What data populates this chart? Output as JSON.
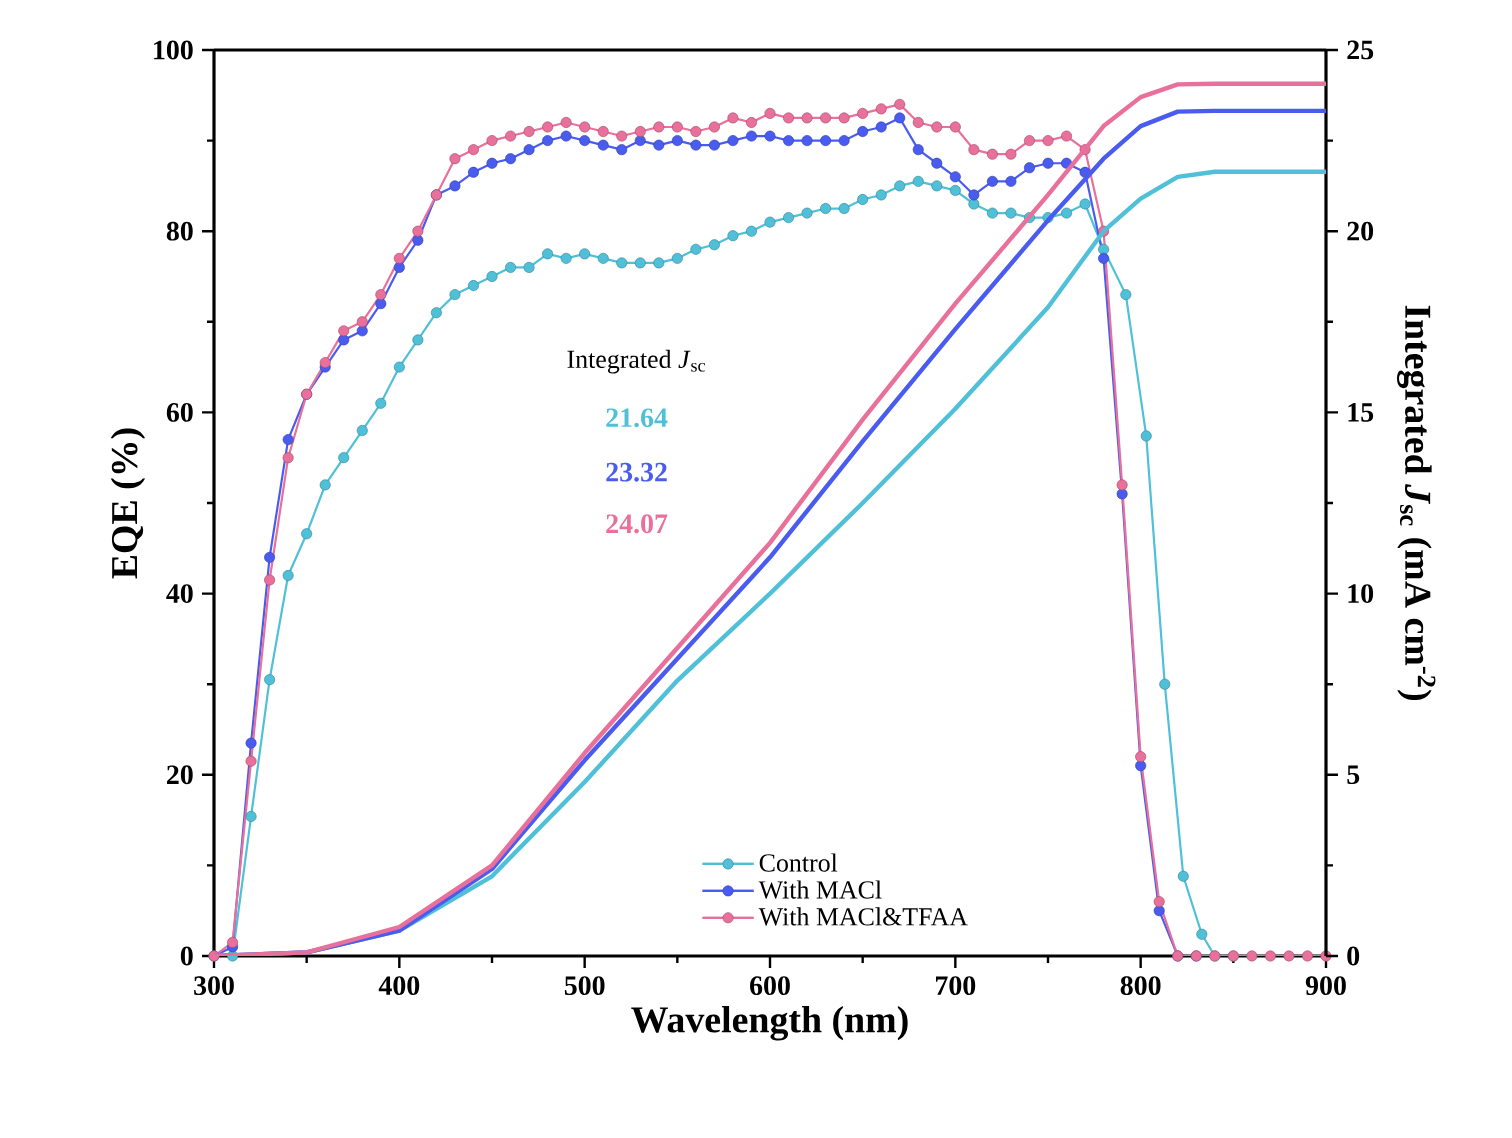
{
  "chart_data": {
    "type": "line",
    "xlabel": "Wavelength (nm)",
    "ylabel": "EQE (%)",
    "y2label": "Integrated *J*$_{sc}$ (mA cm$^{-2}$)",
    "xlim": [
      300,
      900
    ],
    "xticks": [
      300,
      400,
      500,
      600,
      700,
      800,
      900
    ],
    "ylim": [
      0,
      100
    ],
    "yticks": [
      0,
      20,
      40,
      60,
      80,
      100
    ],
    "y2lim": [
      0,
      25
    ],
    "y2ticks": [
      0,
      5,
      10,
      15,
      20,
      25
    ],
    "legend": "bottom",
    "grid": false,
    "annotations": [
      "Integrated *J*$_{sc}$",
      "21.64",
      "23.32",
      "24.07"
    ],
    "series": [
      {
        "name": "Control",
        "color": "#4fc0d8",
        "marker": "circle",
        "x": [
          310,
          320,
          330,
          340,
          350,
          360,
          370,
          380,
          390,
          400,
          410,
          420,
          430,
          440,
          450,
          460,
          470,
          480,
          490,
          500,
          510,
          520,
          530,
          540,
          550,
          560,
          570,
          580,
          590,
          600,
          610,
          620,
          630,
          640,
          650,
          660,
          670,
          680,
          690,
          700,
          710,
          720,
          730,
          740,
          750,
          760,
          770,
          780,
          792,
          803,
          813,
          823,
          833,
          840,
          850
        ],
        "values": [
          0,
          15.4,
          30.5,
          42,
          46.6,
          52,
          55,
          58,
          61,
          65,
          68,
          71,
          73,
          74,
          75,
          76,
          76,
          77.5,
          77,
          77.5,
          77,
          76.5,
          76.5,
          76.5,
          77,
          78,
          78.5,
          79.5,
          80,
          81,
          81.5,
          82,
          82.5,
          82.5,
          83.5,
          84,
          85,
          85.5,
          85,
          84.5,
          83,
          82,
          82,
          81.5,
          81.5,
          82,
          83,
          78,
          73,
          57.4,
          30,
          8.8,
          2.4,
          0,
          0
        ]
      },
      {
        "name": "With MACl",
        "color": "#4a5cf0",
        "marker": "circle",
        "x": [
          300,
          310,
          320,
          330,
          340,
          350,
          360,
          370,
          380,
          390,
          400,
          410,
          420,
          430,
          440,
          450,
          460,
          470,
          480,
          490,
          500,
          510,
          520,
          530,
          540,
          550,
          560,
          570,
          580,
          590,
          600,
          610,
          620,
          630,
          640,
          650,
          660,
          670,
          680,
          690,
          700,
          710,
          720,
          730,
          740,
          750,
          760,
          770,
          780,
          790,
          800,
          810,
          820,
          830
        ],
        "values": [
          0,
          1,
          23.5,
          44,
          57,
          62,
          65,
          68,
          69,
          72,
          76,
          79,
          84,
          85,
          86.5,
          87.5,
          88,
          89,
          90,
          90.5,
          90,
          89.5,
          89,
          90,
          89.5,
          90,
          89.5,
          89.5,
          90,
          90.5,
          90.5,
          90,
          90,
          90,
          90,
          91,
          91.5,
          92.5,
          89,
          87.5,
          86,
          84,
          85.5,
          85.5,
          87,
          87.5,
          87.5,
          86.5,
          77,
          51,
          21,
          5,
          0,
          0
        ]
      },
      {
        "name": "With MACl&TFAA",
        "color": "#e8709a",
        "marker": "circle",
        "x": [
          300,
          310,
          320,
          330,
          340,
          350,
          360,
          370,
          380,
          390,
          400,
          410,
          420,
          430,
          440,
          450,
          460,
          470,
          480,
          490,
          500,
          510,
          520,
          530,
          540,
          550,
          560,
          570,
          580,
          590,
          600,
          610,
          620,
          630,
          640,
          650,
          660,
          670,
          680,
          690,
          700,
          710,
          720,
          730,
          740,
          750,
          760,
          770,
          780,
          790,
          800,
          810,
          820,
          830,
          840,
          850,
          860,
          870,
          880,
          890,
          900
        ],
        "values": [
          0,
          1.5,
          21.5,
          41.5,
          55,
          62,
          65.5,
          69,
          70,
          73,
          77,
          80,
          84,
          88,
          89,
          90,
          90.5,
          91,
          91.5,
          92,
          91.5,
          91,
          90.5,
          91,
          91.5,
          91.5,
          91,
          91.5,
          92.5,
          92,
          93,
          92.5,
          92.5,
          92.5,
          92.5,
          93,
          93.5,
          94,
          92,
          91.5,
          91.5,
          89,
          88.5,
          88.5,
          90,
          90,
          90.5,
          89,
          80,
          52,
          22,
          6,
          0,
          0,
          0,
          0,
          0,
          0,
          0,
          0,
          0
        ]
      },
      {
        "color": "#4fc0d8",
        "marker": "none",
        "axis": "y2",
        "x": [
          300,
          350,
          400,
          450,
          500,
          550,
          600,
          650,
          700,
          750,
          780,
          800,
          820,
          840,
          900
        ],
        "values": [
          0,
          0.1,
          0.7,
          2.2,
          4.8,
          7.6,
          10,
          12.5,
          15.1,
          17.9,
          20,
          20.9,
          21.5,
          21.64,
          21.64
        ]
      },
      {
        "color": "#4a5cf0",
        "marker": "none",
        "axis": "y2",
        "x": [
          300,
          350,
          400,
          450,
          500,
          550,
          600,
          650,
          700,
          750,
          780,
          800,
          820,
          840,
          900
        ],
        "values": [
          0,
          0.1,
          0.7,
          2.4,
          5.4,
          8.2,
          11,
          14.2,
          17.3,
          20.3,
          22,
          22.9,
          23.3,
          23.32,
          23.32
        ]
      },
      {
        "color": "#e8709a",
        "marker": "none",
        "axis": "y2",
        "x": [
          300,
          350,
          400,
          450,
          500,
          550,
          600,
          650,
          700,
          750,
          780,
          800,
          820,
          840,
          900
        ],
        "values": [
          0,
          0.1,
          0.8,
          2.5,
          5.6,
          8.5,
          11.4,
          14.8,
          18,
          21,
          22.9,
          23.7,
          24.05,
          24.07,
          24.07
        ]
      }
    ]
  }
}
